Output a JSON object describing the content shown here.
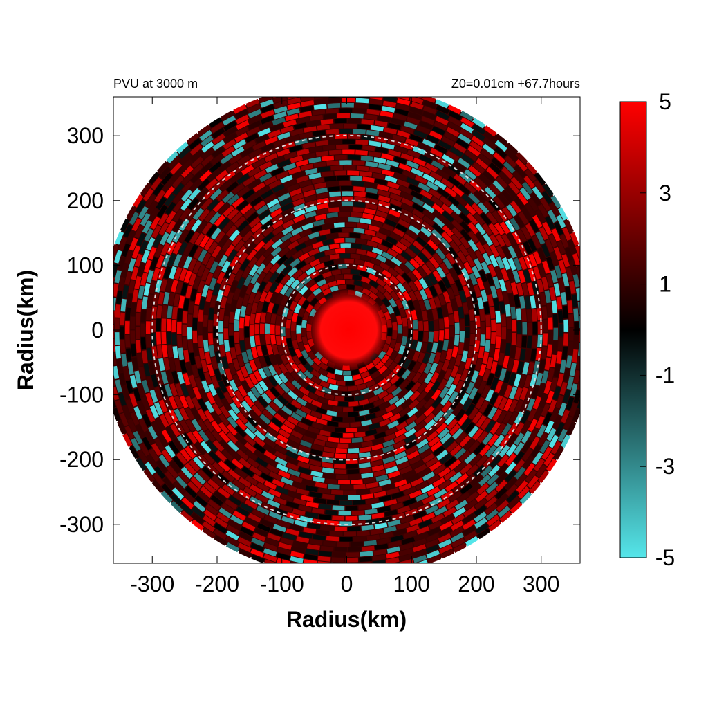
{
  "chart_data": {
    "type": "heatmap",
    "title_left": "PVU at  3000 m",
    "title_right": "Z0=0.01cm  +67.7hours",
    "xlabel": "Radius(km)",
    "ylabel": "Radius(km)",
    "xlim": [
      -360,
      360
    ],
    "ylim": [
      -360,
      360
    ],
    "x_ticks": [
      -300,
      -200,
      -100,
      0,
      100,
      200,
      300
    ],
    "y_ticks": [
      300,
      200,
      100,
      0,
      -100,
      -200,
      -300
    ],
    "domain_radius_km": 380,
    "reference_circles_km": [
      100,
      200,
      300
    ],
    "colorbar": {
      "range": [
        -5,
        5
      ],
      "ticks": [
        5,
        3,
        1,
        -1,
        -3,
        -5
      ],
      "colors": {
        "low": "#55e6ea",
        "mid": "#000000",
        "high": "#ff0000"
      }
    },
    "field_description": "Potential vorticity (PVU) field; strong positive core within ~50 km of center, alternating positive (red) and negative (cyan) spiral bands outward"
  }
}
